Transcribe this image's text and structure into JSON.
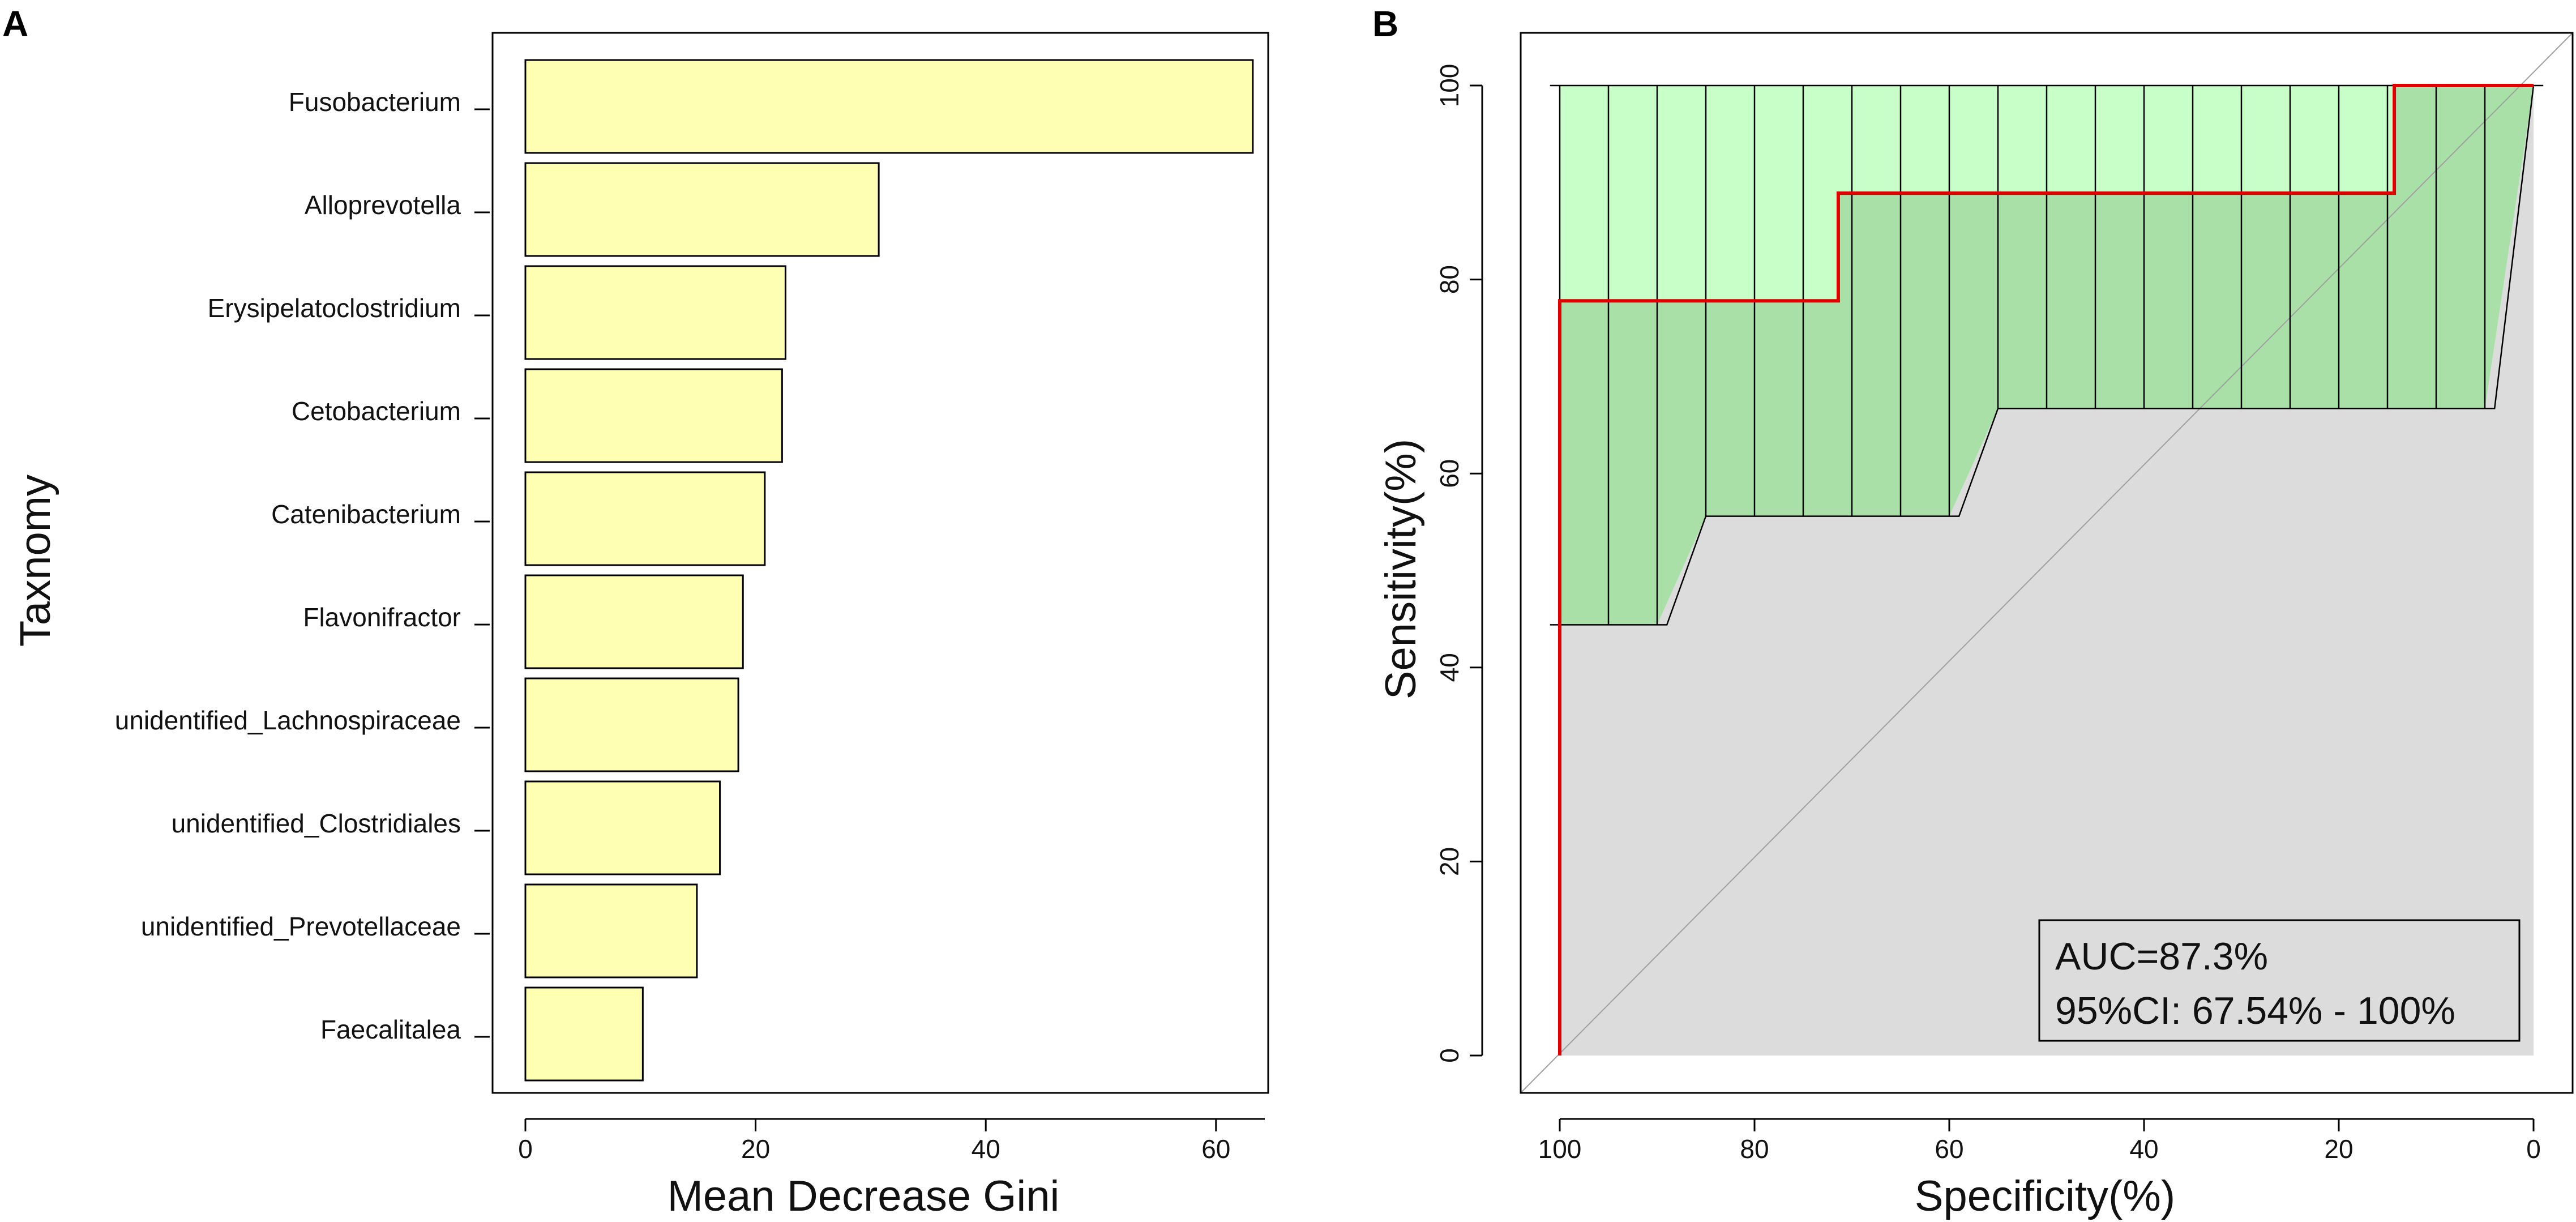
{
  "figure": {
    "panel_a_label": "A",
    "panel_b_label": "B"
  },
  "chart_data": [
    {
      "type": "bar",
      "orientation": "horizontal",
      "panel": "A",
      "title": "",
      "xlabel": "Mean Decrease Gini",
      "ylabel": "Taxnomy",
      "xlim": [
        0,
        66
      ],
      "xticks": [
        0,
        20,
        40,
        60
      ],
      "categories": [
        "Fusobacterium",
        "Alloprevotella",
        "Erysipelatoclostridium",
        "Cetobacterium",
        "Catenibacterium",
        "Flavonifractor",
        "unidentified_Lachnospiraceae",
        "unidentified_Clostridiales",
        "unidentified_Prevotellaceae",
        "Faecalitalea"
      ],
      "values": [
        63.2,
        30.7,
        22.6,
        22.3,
        20.8,
        18.9,
        18.5,
        16.9,
        14.9,
        10.2
      ],
      "bar_color": "#FFFFB3",
      "edge_color": "#000000"
    },
    {
      "type": "line",
      "subtype": "roc",
      "panel": "B",
      "title": "",
      "xlabel": "Specificity(%)",
      "ylabel": "Sensitivity(%)",
      "xlim": [
        100,
        0
      ],
      "ylim": [
        0,
        100
      ],
      "xticks": [
        100,
        80,
        60,
        40,
        20,
        0
      ],
      "yticks": [
        0,
        20,
        40,
        60,
        80,
        100
      ],
      "series": [
        {
          "name": "ROC",
          "color": "#E00000",
          "points": [
            [
              100,
              0
            ],
            [
              100,
              77.8
            ],
            [
              71.4,
              77.8
            ],
            [
              71.4,
              88.9
            ],
            [
              14.3,
              88.9
            ],
            [
              14.3,
              100
            ],
            [
              0,
              100
            ]
          ]
        },
        {
          "name": "CI upper",
          "color": "#C8FFC8",
          "points": [
            [
              100,
              100
            ],
            [
              0,
              100
            ]
          ]
        },
        {
          "name": "CI lower",
          "color": "#A8E0A8",
          "points": [
            [
              100,
              44.4
            ],
            [
              90,
              44.4
            ],
            [
              85,
              55.6
            ],
            [
              60,
              55.6
            ],
            [
              55,
              66.7
            ],
            [
              5,
              66.7
            ],
            [
              0,
              100
            ]
          ]
        },
        {
          "name": "chance",
          "color": "#A0A0A0",
          "points": [
            [
              100,
              0
            ],
            [
              0,
              100
            ]
          ]
        }
      ],
      "ci_bar_specificities": [
        100,
        95,
        90,
        85,
        80,
        75,
        70,
        65,
        60,
        55,
        50,
        45,
        40,
        35,
        30,
        25,
        20,
        15,
        10,
        5
      ],
      "background_color": "#DCDCDC",
      "annotation": {
        "auc": "AUC=87.3%",
        "ci": "95%CI: 67.54% - 100%",
        "placement": "bottom-right"
      }
    }
  ]
}
